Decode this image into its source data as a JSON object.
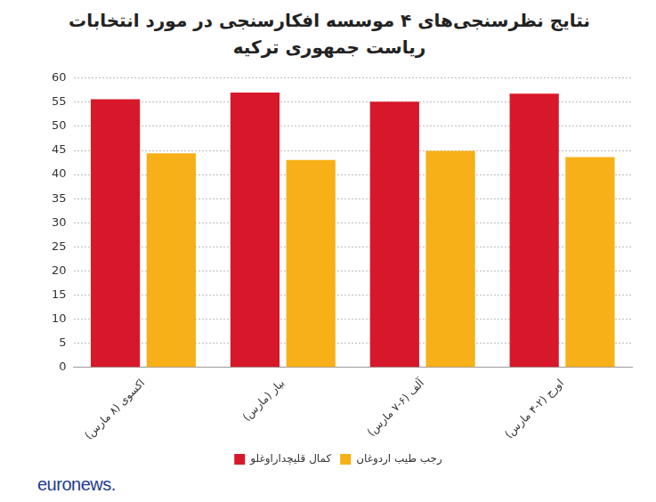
{
  "chart_data": {
    "type": "bar",
    "title": "نتایج نظرسنجی‌های ۴ موسسه افکارسنجی در مورد انتخابات ریاست جمهوری ترکیه",
    "categories": [
      "اکسوی (۸ مارس)",
      "بیار (مارس)",
      "آلف (۶-۷ مارس)",
      "اورج (۲-۴ مارس)"
    ],
    "series": [
      {
        "name": "کمال قلیچداراوغلو",
        "color": "#d7182a",
        "values": [
          55.6,
          57,
          55.1,
          56.8
        ]
      },
      {
        "name": "رجب طیب اردوغان",
        "color": "#f7b018",
        "values": [
          44.4,
          43,
          44.9,
          43.6
        ]
      }
    ],
    "ylim": [
      0,
      60
    ],
    "yticks": [
      0,
      5,
      10,
      15,
      20,
      25,
      30,
      35,
      40,
      45,
      50,
      55,
      60
    ],
    "grid": true,
    "legend": "bottom",
    "source": "euronews."
  }
}
